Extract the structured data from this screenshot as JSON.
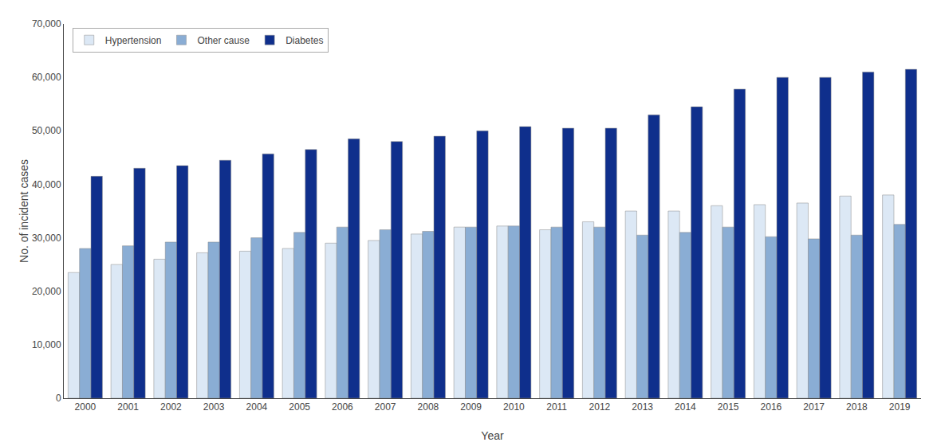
{
  "chart_data": {
    "type": "bar",
    "xlabel": "Year",
    "ylabel": "No. of incident cases",
    "categories": [
      2000,
      2001,
      2002,
      2003,
      2004,
      2005,
      2006,
      2007,
      2008,
      2009,
      2010,
      2011,
      2012,
      2013,
      2014,
      2015,
      2016,
      2017,
      2018,
      2019
    ],
    "series": [
      {
        "name": "Hypertension",
        "color": "#dce8f5",
        "values": [
          23500,
          25000,
          26000,
          27200,
          27500,
          28000,
          29000,
          29500,
          30700,
          32000,
          32200,
          31500,
          33000,
          35000,
          35000,
          36000,
          36200,
          36500,
          37800,
          38000
        ]
      },
      {
        "name": "Other cause",
        "color": "#8aadd4",
        "values": [
          28000,
          28500,
          29200,
          29200,
          30000,
          31000,
          32000,
          31500,
          31200,
          32000,
          32200,
          32000,
          32000,
          30500,
          31000,
          32000,
          30200,
          29800,
          30500,
          32500
        ]
      },
      {
        "name": "Diabetes",
        "color": "#0f2f8c",
        "values": [
          41500,
          43000,
          43500,
          44500,
          45700,
          46500,
          48500,
          48000,
          49000,
          50000,
          50800,
          50500,
          50500,
          53000,
          54500,
          57800,
          60000,
          60000,
          61000,
          61500
        ]
      }
    ],
    "ylim": [
      0,
      70000
    ],
    "yticks": [
      0,
      {
        "value": 10000,
        "label": "10,000"
      },
      {
        "value": 20000,
        "label": "20,000"
      },
      {
        "value": 30000,
        "label": "30,000"
      },
      {
        "value": 40000,
        "label": "40,000"
      },
      {
        "value": 50000,
        "label": "50,000"
      },
      {
        "value": 60000,
        "label": "60,000"
      },
      {
        "value": 70000,
        "label": "70,000"
      }
    ],
    "grid": false,
    "legend": "upper left"
  }
}
